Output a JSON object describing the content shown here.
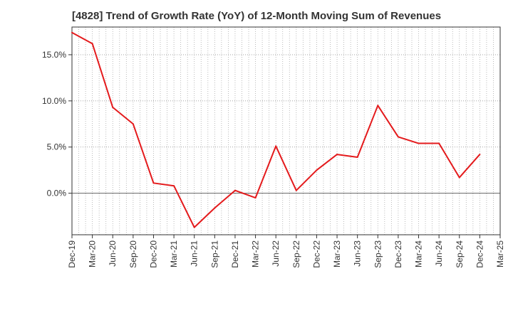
{
  "chart_data": {
    "type": "line",
    "title": "[4828]  Trend of Growth Rate (YoY) of 12-Month Moving Sum of Revenues",
    "xlabel": "",
    "ylabel": "",
    "x_tick_labels": [
      "Dec-19",
      "Mar-20",
      "Jun-20",
      "Sep-20",
      "Dec-20",
      "Mar-21",
      "Jun-21",
      "Sep-21",
      "Dec-21",
      "Mar-22",
      "Jun-22",
      "Sep-22",
      "Dec-22",
      "Mar-23",
      "Jun-23",
      "Sep-23",
      "Dec-23",
      "Mar-24",
      "Jun-24",
      "Sep-24",
      "Dec-24",
      "Mar-25"
    ],
    "y_ticks": [
      0,
      5,
      10,
      15
    ],
    "y_tick_labels": [
      "0.0%",
      "5.0%",
      "10.0%",
      "15.0%"
    ],
    "ylim": [
      -4.5,
      18.0
    ],
    "grid": true,
    "line_color": "#e41a1c",
    "zero_line_color": "#666666",
    "series": [
      {
        "x": [
          "Dec-19",
          "Mar-20",
          "Jun-20",
          "Sep-20",
          "Dec-20",
          "Mar-21",
          "Jun-21",
          "Sep-21",
          "Dec-21",
          "Mar-22",
          "Jun-22",
          "Sep-22",
          "Dec-22",
          "Mar-23",
          "Jun-23",
          "Sep-23",
          "Dec-23",
          "Mar-24",
          "Jun-24",
          "Sep-24",
          "Dec-24"
        ],
        "values": [
          17.4,
          16.2,
          9.3,
          7.5,
          1.1,
          0.8,
          -3.7,
          -1.6,
          0.3,
          -0.5,
          5.1,
          0.3,
          2.5,
          4.2,
          3.9,
          9.5,
          6.1,
          5.4,
          5.4,
          1.7,
          4.2
        ]
      }
    ]
  }
}
